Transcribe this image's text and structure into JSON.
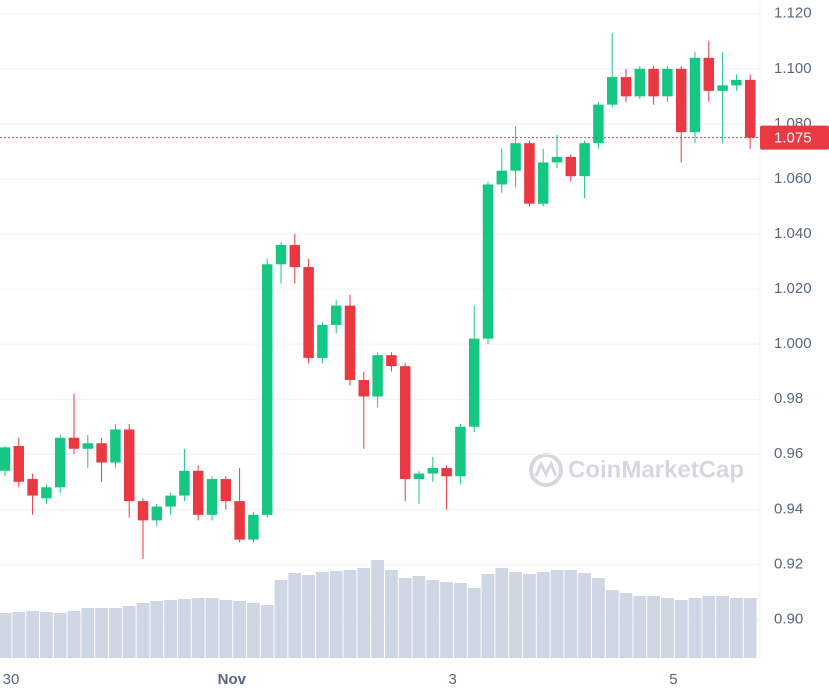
{
  "chart_data": {
    "type": "candlestick",
    "categories": [
      "30",
      null,
      null,
      null,
      null,
      null,
      null,
      null,
      null,
      null,
      null,
      null,
      null,
      null,
      null,
      null,
      "Nov",
      null,
      null,
      null,
      null,
      null,
      null,
      null,
      null,
      null,
      null,
      null,
      null,
      null,
      null,
      null,
      "3",
      null,
      null,
      null,
      null,
      null,
      null,
      null,
      null,
      null,
      null,
      null,
      null,
      null,
      null,
      null,
      "5",
      null,
      null,
      null,
      null,
      null,
      null
    ],
    "open": [
      0.954,
      0.963,
      0.951,
      0.944,
      0.948,
      0.966,
      0.962,
      0.964,
      0.957,
      0.969,
      0.943,
      0.936,
      0.941,
      0.945,
      0.954,
      0.938,
      0.951,
      0.943,
      0.929,
      0.938,
      1.029,
      1.036,
      1.028,
      0.995,
      1.007,
      1.014,
      0.987,
      0.981,
      0.996,
      0.992,
      0.951,
      0.953,
      0.955,
      0.952,
      0.97,
      1.002,
      1.058,
      1.063,
      1.073,
      1.051,
      1.066,
      1.068,
      1.061,
      1.073,
      1.087,
      1.097,
      1.09,
      1.1,
      1.09,
      1.1,
      1.077,
      1.104,
      1.092,
      1.094,
      1.096
    ],
    "high": [
      0.963,
      0.966,
      0.953,
      0.949,
      0.967,
      0.982,
      0.967,
      0.966,
      0.971,
      0.971,
      0.944,
      0.942,
      0.946,
      0.962,
      0.956,
      0.952,
      0.952,
      0.955,
      0.939,
      1.031,
      1.037,
      1.04,
      1.031,
      1.008,
      1.016,
      1.018,
      0.99,
      0.997,
      0.997,
      0.993,
      0.954,
      0.959,
      0.956,
      0.971,
      1.014,
      1.059,
      1.071,
      1.079,
      1.074,
      1.071,
      1.076,
      1.069,
      1.074,
      1.088,
      1.113,
      1.1,
      1.101,
      1.101,
      1.101,
      1.101,
      1.106,
      1.11,
      1.106,
      1.098,
      1.098
    ],
    "low": [
      0.952,
      0.948,
      0.938,
      0.942,
      0.946,
      0.96,
      0.955,
      0.95,
      0.955,
      0.937,
      0.922,
      0.934,
      0.938,
      0.943,
      0.936,
      0.936,
      0.94,
      0.928,
      0.928,
      0.937,
      1.022,
      1.022,
      0.993,
      0.993,
      1.004,
      0.985,
      0.962,
      0.977,
      0.99,
      0.943,
      0.942,
      0.95,
      0.94,
      0.949,
      0.968,
      1.0,
      1.055,
      1.057,
      1.05,
      1.05,
      1.064,
      1.059,
      1.053,
      1.071,
      1.086,
      1.088,
      1.089,
      1.087,
      1.088,
      1.066,
      1.073,
      1.088,
      1.073,
      1.092,
      1.071
    ],
    "close": [
      0.9625,
      0.95,
      0.945,
      0.948,
      0.966,
      0.962,
      0.964,
      0.957,
      0.969,
      0.943,
      0.936,
      0.941,
      0.945,
      0.954,
      0.938,
      0.951,
      0.943,
      0.929,
      0.938,
      1.029,
      1.036,
      1.028,
      0.995,
      1.007,
      1.014,
      0.987,
      0.981,
      0.996,
      0.992,
      0.951,
      0.953,
      0.955,
      0.952,
      0.97,
      1.002,
      1.058,
      1.063,
      1.073,
      1.051,
      1.066,
      1.068,
      1.061,
      1.073,
      1.087,
      1.097,
      1.09,
      1.1,
      1.09,
      1.1,
      1.077,
      1.104,
      1.092,
      1.094,
      1.096,
      1.075
    ],
    "volume": [
      45,
      46,
      47,
      46,
      45,
      47,
      50,
      50,
      50,
      52,
      55,
      57,
      58,
      59,
      60,
      60,
      58,
      57,
      55,
      53,
      78,
      85,
      83,
      86,
      87,
      88,
      90,
      98,
      88,
      80,
      82,
      78,
      76,
      75,
      70,
      84,
      90,
      86,
      84,
      86,
      88,
      88,
      85,
      80,
      68,
      65,
      62,
      62,
      60,
      58,
      60,
      62,
      62,
      60,
      60
    ],
    "up_color": "#16c784",
    "down_color": "#ea3943",
    "volume_color": "#cfd6e4",
    "current_price": 1.075,
    "ylim": [
      0.886,
      1.125
    ],
    "yticks": [
      {
        "value": 0.9,
        "label": "0.90"
      },
      0.92,
      0.94,
      0.96,
      0.98,
      {
        "value": 1.0,
        "label": "1.000"
      },
      {
        "value": 1.02,
        "label": "1.020"
      },
      {
        "value": 1.04,
        "label": "1.040"
      },
      {
        "value": 1.06,
        "label": "1.060"
      },
      {
        "value": 1.08,
        "label": "1.080"
      },
      {
        "value": 1.1,
        "label": "1.100"
      },
      {
        "value": 1.12,
        "label": "1.120"
      }
    ],
    "grid": true,
    "watermark": "CoinMarketCap"
  }
}
